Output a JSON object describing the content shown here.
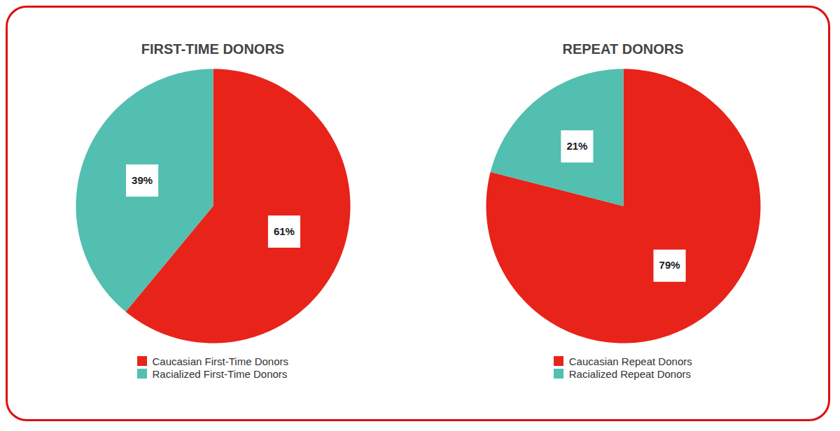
{
  "chart_data": [
    {
      "type": "pie",
      "title": "FIRST-TIME DONORS",
      "categories": [
        "Caucasian First-Time Donors",
        "Racialized First-Time Donors"
      ],
      "values": [
        61,
        39
      ],
      "value_labels": [
        "61%",
        "39%"
      ],
      "colors": [
        "#e8231a",
        "#52bfb0"
      ],
      "data_labels": true,
      "legend": "bottom"
    },
    {
      "type": "pie",
      "title": "REPEAT DONORS",
      "categories": [
        "Caucasian Repeat Donors",
        "Racialized Repeat Donors"
      ],
      "values": [
        79,
        21
      ],
      "value_labels": [
        "79%",
        "21%"
      ],
      "colors": [
        "#e8231a",
        "#52bfb0"
      ],
      "data_labels": true,
      "legend": "bottom"
    }
  ]
}
